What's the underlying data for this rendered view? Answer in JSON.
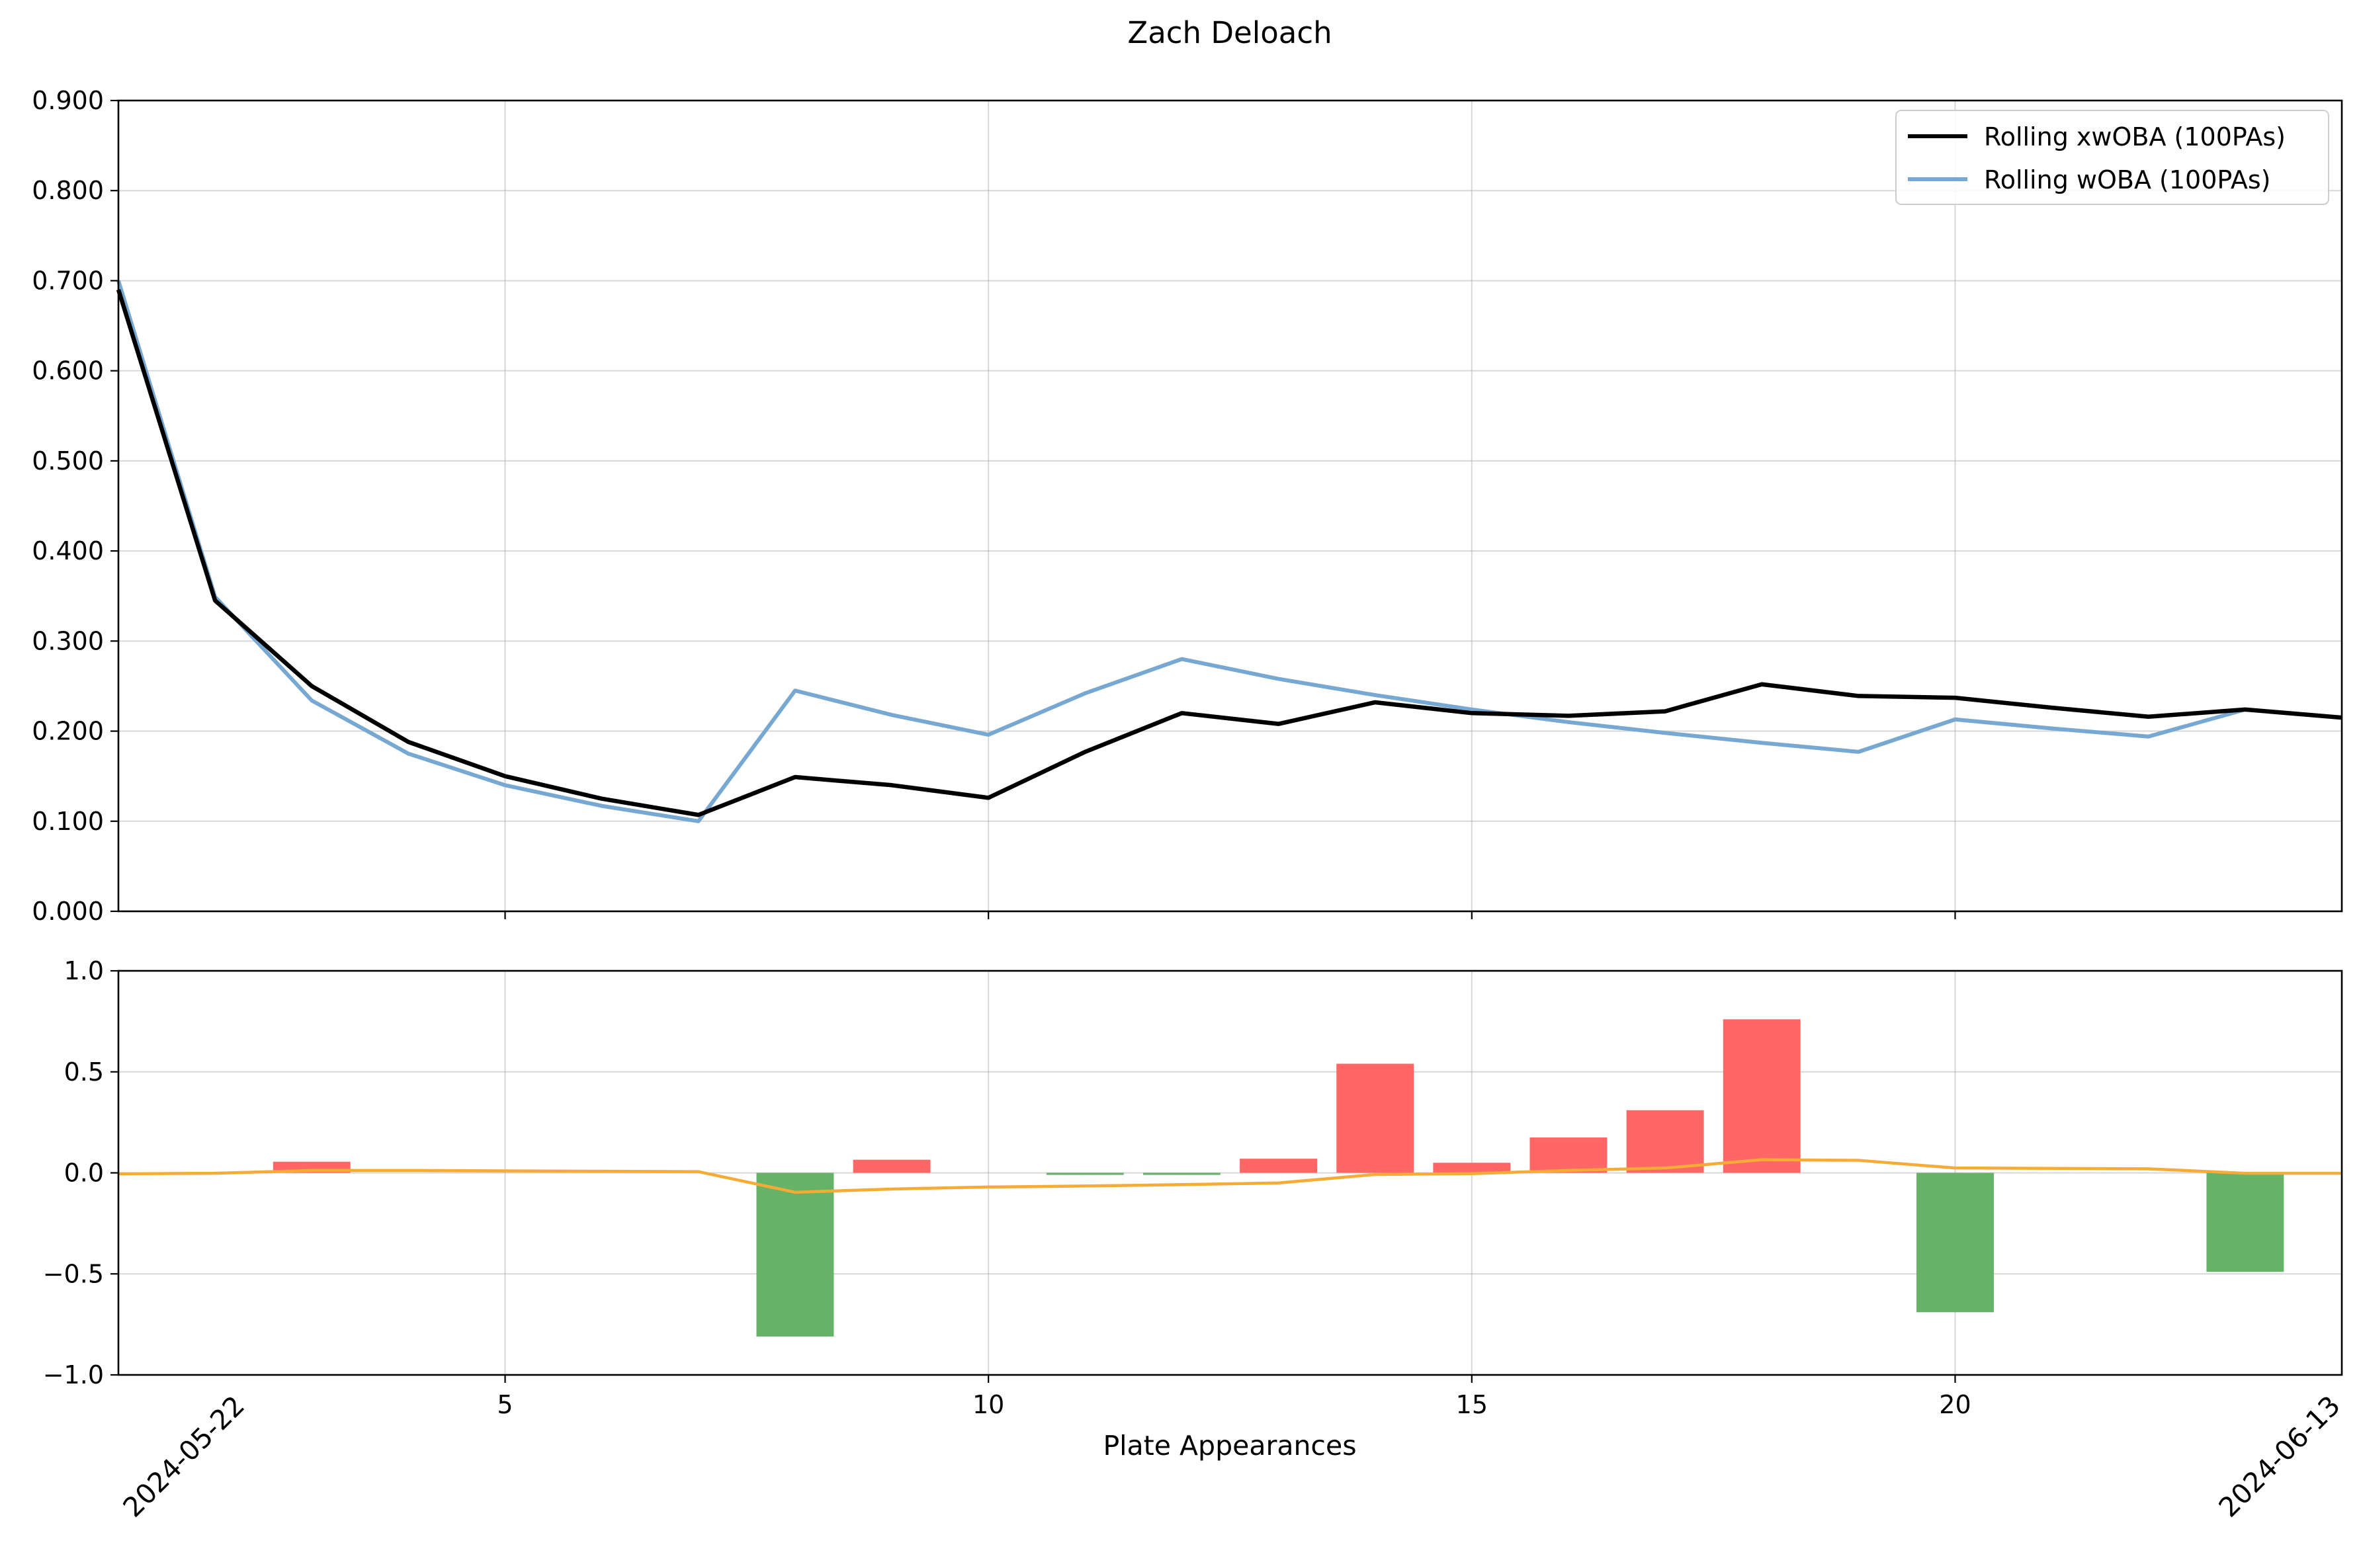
{
  "chart_data": [
    {
      "type": "line",
      "title": "Zach Deloach",
      "x": [
        1,
        2,
        3,
        4,
        5,
        6,
        7,
        8,
        9,
        10,
        11,
        12,
        13,
        14,
        15,
        16,
        17,
        18,
        19,
        20,
        21,
        22,
        23,
        24
      ],
      "xlim": [
        1,
        24
      ],
      "ylim": [
        0,
        0.9
      ],
      "yticks": [
        "0.000",
        "0.100",
        "0.200",
        "0.300",
        "0.400",
        "0.500",
        "0.600",
        "0.700",
        "0.800",
        "0.900"
      ],
      "xticks": [
        "5",
        "10",
        "15",
        "20"
      ],
      "grid": true,
      "legend_position": "top-right",
      "series": [
        {
          "name": "Rolling xwOBA (100PAs)",
          "color": "#000000",
          "values": [
            0.69,
            0.345,
            0.25,
            0.188,
            0.15,
            0.125,
            0.107,
            0.149,
            0.14,
            0.126,
            0.177,
            0.22,
            0.208,
            0.232,
            0.22,
            0.217,
            0.222,
            0.252,
            0.239,
            0.237,
            0.226,
            0.216,
            0.224,
            0.215
          ]
        },
        {
          "name": "Rolling wOBA (100PAs)",
          "color": "#77a8d1",
          "values": [
            0.7,
            0.349,
            0.234,
            0.175,
            0.14,
            0.117,
            0.1,
            0.245,
            0.218,
            0.196,
            0.242,
            0.28,
            0.258,
            0.24,
            0.224,
            0.21,
            0.198,
            0.187,
            0.177,
            0.213,
            0.203,
            0.194,
            0.224,
            0.215
          ]
        }
      ]
    },
    {
      "type": "bar",
      "xlabel": "Plate Appearances",
      "xlim": [
        1,
        24
      ],
      "ylim": [
        -1,
        1
      ],
      "yticks": [
        "−1.0",
        "−0.5",
        "0.0",
        "0.5",
        "1.0"
      ],
      "xticks": [
        "5",
        "10",
        "15",
        "20"
      ],
      "grid": true,
      "positive_color": "#ff6666",
      "negative_color": "#66b266",
      "x": [
        3,
        8,
        9,
        11,
        12,
        13,
        14,
        15,
        16,
        17,
        18,
        20,
        23
      ],
      "values": [
        0.055,
        -0.81,
        0.065,
        -0.01,
        -0.01,
        0.07,
        0.54,
        0.05,
        0.175,
        0.31,
        0.76,
        -0.69,
        -0.49
      ],
      "trend_line": {
        "color": "#f5ab35",
        "x": [
          1,
          2,
          3,
          4,
          5,
          6,
          7,
          8,
          9,
          10,
          11,
          12,
          13,
          14,
          15,
          16,
          17,
          18,
          19,
          20,
          21,
          22,
          23,
          24
        ],
        "values": [
          -0.005,
          -0.002,
          0.012,
          0.012,
          0.01,
          0.008,
          0.006,
          -0.096,
          -0.08,
          -0.07,
          -0.065,
          -0.058,
          -0.05,
          -0.008,
          -0.004,
          0.012,
          0.024,
          0.065,
          0.062,
          0.024,
          0.022,
          0.02,
          -0.002,
          -0.002
        ]
      },
      "date_labels": [
        "2024-05-22",
        "2024-06-13"
      ]
    }
  ]
}
